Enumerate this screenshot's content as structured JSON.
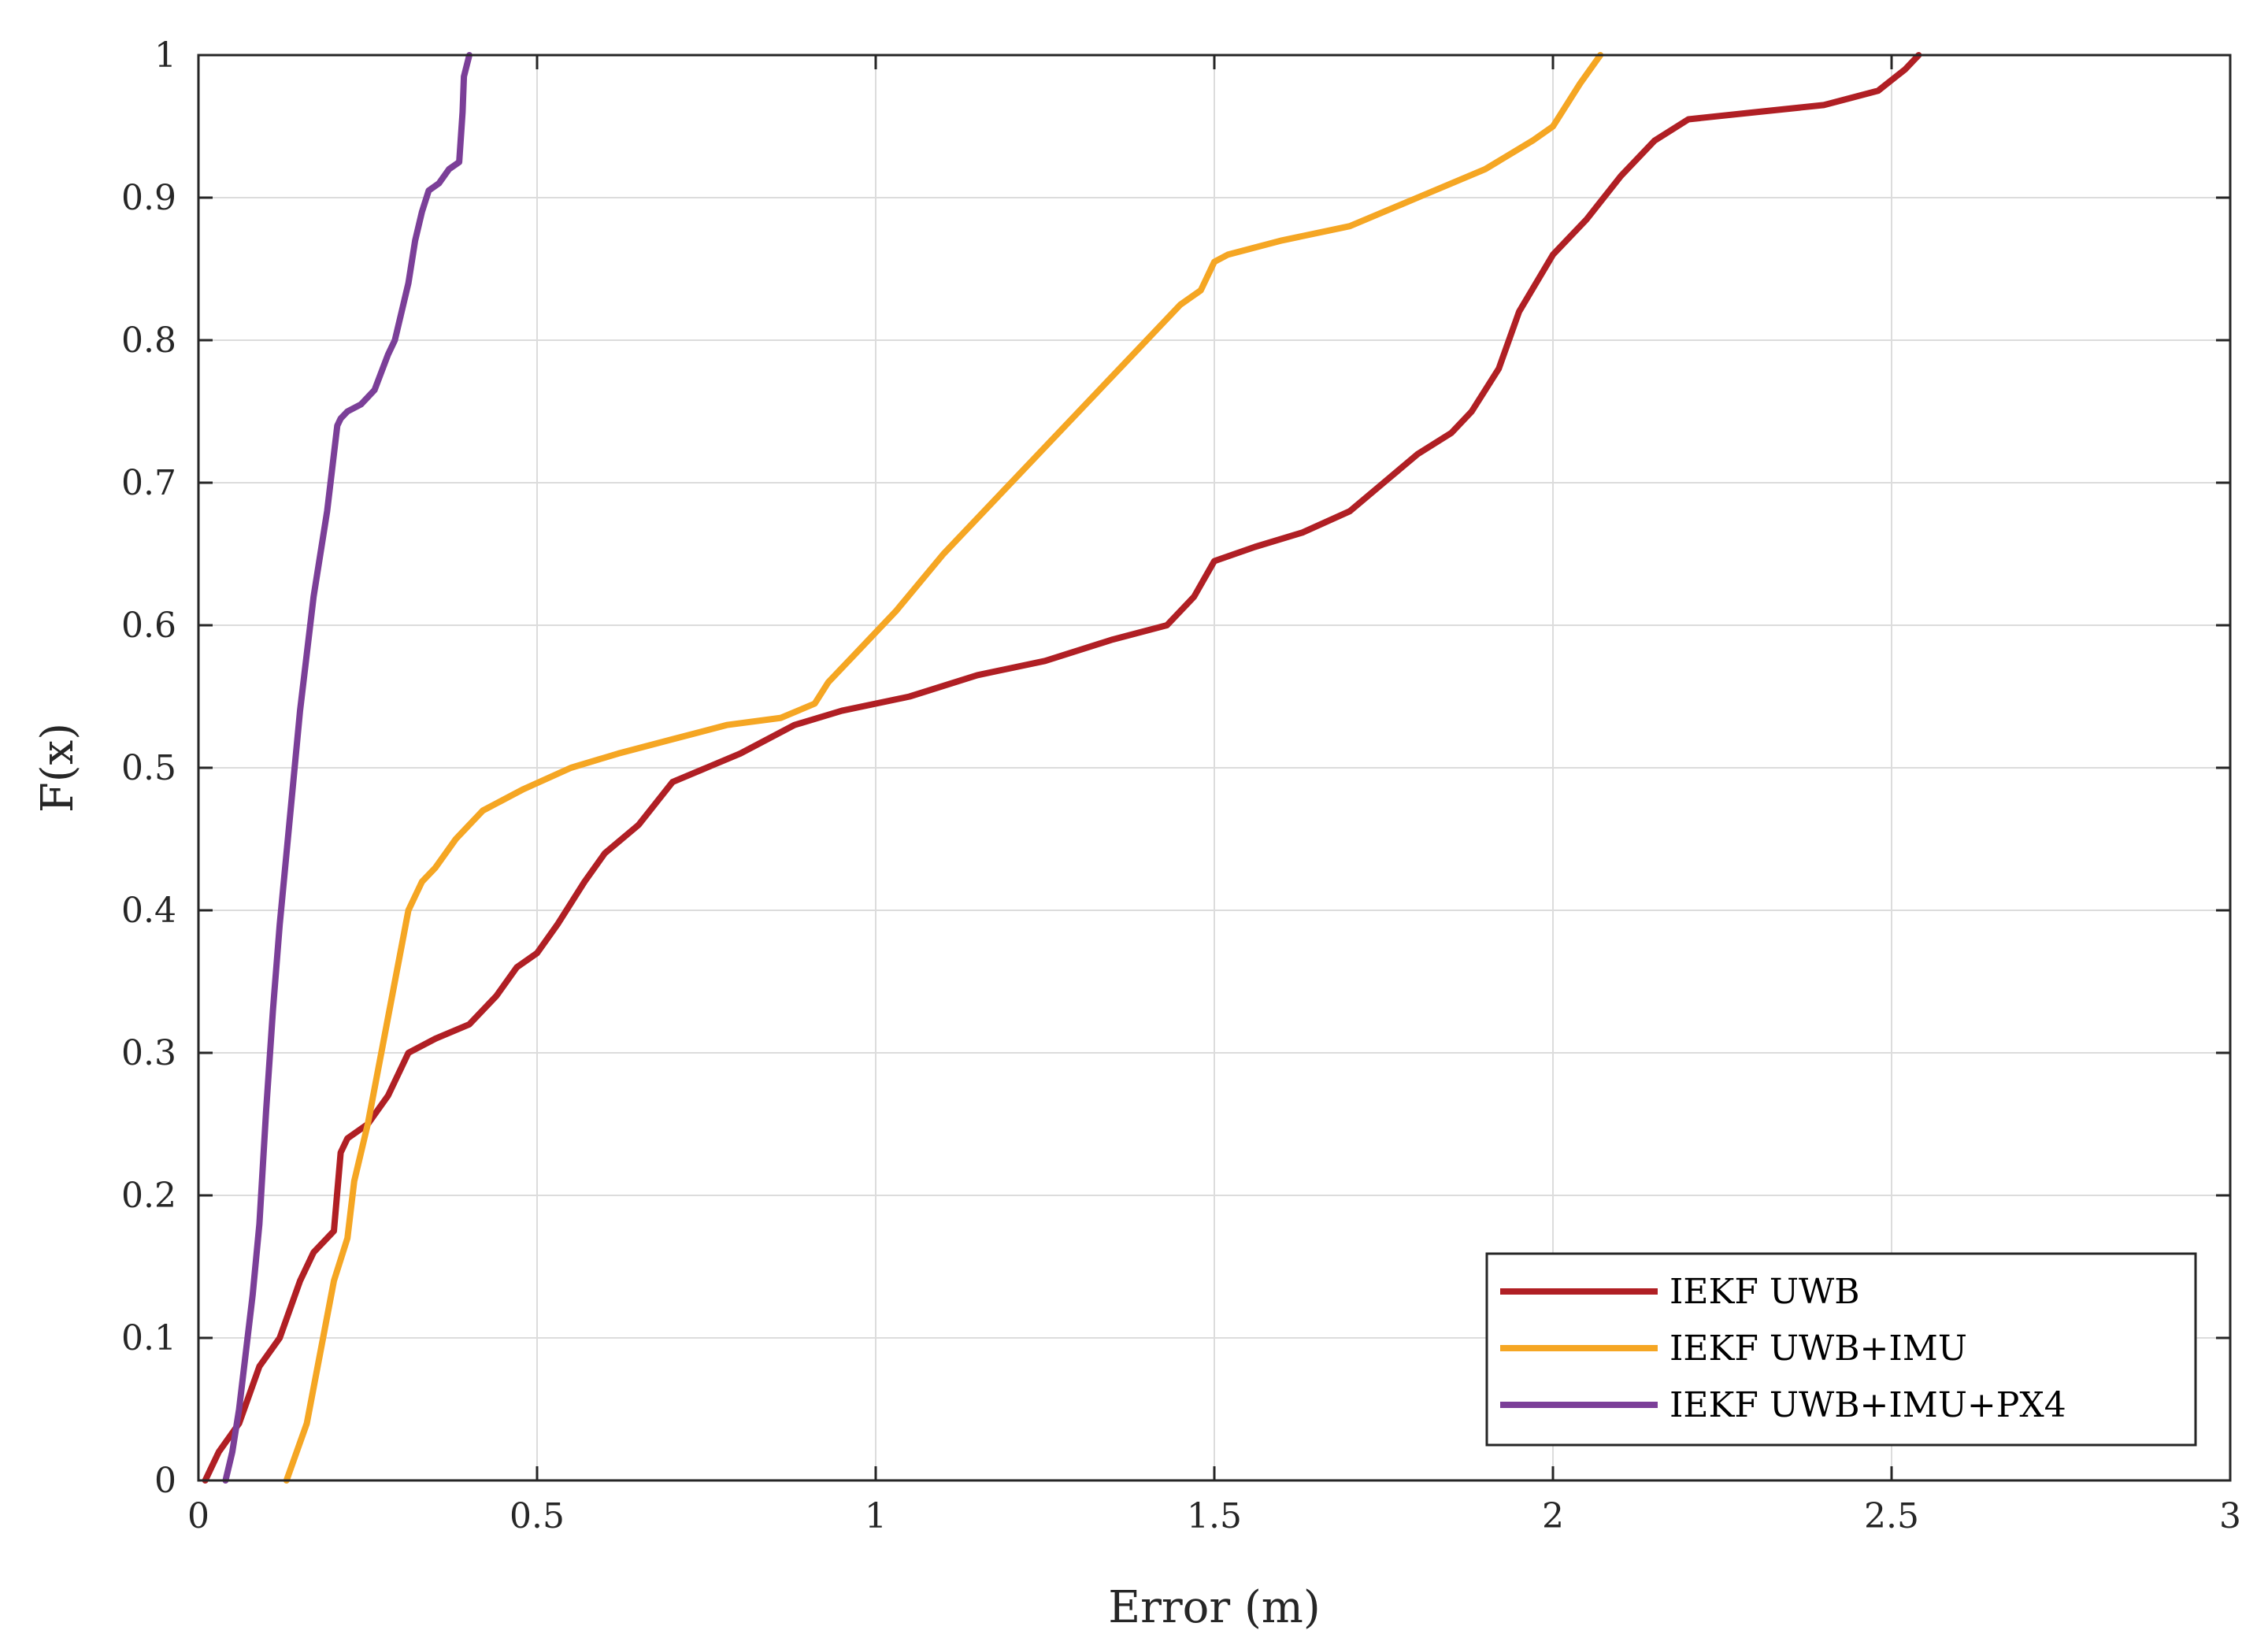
{
  "chart_data": {
    "type": "line",
    "xlabel": "Error (m)",
    "ylabel": "F(x)",
    "xlim": [
      0,
      3
    ],
    "ylim": [
      0,
      1
    ],
    "xticks": [
      "0",
      "0.5",
      "1",
      "1.5",
      "2",
      "2.5",
      "3"
    ],
    "yticks": [
      "0",
      "0.1",
      "0.2",
      "0.3",
      "0.4",
      "0.5",
      "0.6",
      "0.7",
      "0.8",
      "0.9",
      "1"
    ],
    "grid": true,
    "legend_position": "bottom-right",
    "series": [
      {
        "name": "IEKF UWB",
        "color": "#b01f24",
        "x": [
          0.01,
          0.03,
          0.06,
          0.09,
          0.12,
          0.15,
          0.17,
          0.2,
          0.21,
          0.22,
          0.25,
          0.28,
          0.31,
          0.35,
          0.4,
          0.44,
          0.47,
          0.5,
          0.53,
          0.57,
          0.6,
          0.65,
          0.7,
          0.75,
          0.8,
          0.88,
          0.95,
          1.05,
          1.15,
          1.25,
          1.35,
          1.43,
          1.47,
          1.5,
          1.56,
          1.63,
          1.7,
          1.75,
          1.8,
          1.85,
          1.88,
          1.92,
          1.95,
          2.0,
          2.05,
          2.1,
          2.15,
          2.2,
          2.3,
          2.4,
          2.48,
          2.52,
          2.54
        ],
        "values": [
          0.0,
          0.02,
          0.04,
          0.08,
          0.1,
          0.14,
          0.16,
          0.175,
          0.23,
          0.24,
          0.25,
          0.27,
          0.3,
          0.31,
          0.32,
          0.34,
          0.36,
          0.37,
          0.39,
          0.42,
          0.44,
          0.46,
          0.49,
          0.5,
          0.51,
          0.53,
          0.54,
          0.55,
          0.565,
          0.575,
          0.59,
          0.6,
          0.62,
          0.645,
          0.655,
          0.665,
          0.68,
          0.7,
          0.72,
          0.735,
          0.75,
          0.78,
          0.82,
          0.86,
          0.885,
          0.915,
          0.94,
          0.955,
          0.96,
          0.965,
          0.975,
          0.99,
          1.0
        ]
      },
      {
        "name": "IEKF UWB+IMU",
        "color": "#f5a623",
        "x": [
          0.13,
          0.16,
          0.18,
          0.2,
          0.22,
          0.23,
          0.24,
          0.25,
          0.27,
          0.29,
          0.31,
          0.33,
          0.35,
          0.38,
          0.42,
          0.48,
          0.55,
          0.62,
          0.7,
          0.78,
          0.86,
          0.91,
          0.93,
          0.97,
          1.03,
          1.1,
          1.2,
          1.3,
          1.38,
          1.45,
          1.48,
          1.5,
          1.52,
          1.6,
          1.7,
          1.8,
          1.9,
          1.97,
          2.0,
          2.04,
          2.07
        ],
        "values": [
          0.0,
          0.04,
          0.09,
          0.14,
          0.17,
          0.21,
          0.23,
          0.25,
          0.3,
          0.35,
          0.4,
          0.42,
          0.43,
          0.45,
          0.47,
          0.485,
          0.5,
          0.51,
          0.52,
          0.53,
          0.535,
          0.545,
          0.56,
          0.58,
          0.61,
          0.65,
          0.7,
          0.75,
          0.79,
          0.825,
          0.835,
          0.855,
          0.86,
          0.87,
          0.88,
          0.9,
          0.92,
          0.94,
          0.95,
          0.98,
          1.0
        ]
      },
      {
        "name": "IEKF UWB+IMU+PX4",
        "color": "#7b3f98",
        "x": [
          0.04,
          0.05,
          0.06,
          0.07,
          0.08,
          0.09,
          0.1,
          0.11,
          0.12,
          0.13,
          0.14,
          0.15,
          0.16,
          0.17,
          0.18,
          0.19,
          0.2,
          0.205,
          0.21,
          0.22,
          0.24,
          0.26,
          0.28,
          0.29,
          0.31,
          0.32,
          0.33,
          0.34,
          0.355,
          0.37,
          0.385,
          0.39,
          0.392,
          0.4
        ],
        "values": [
          0.0,
          0.02,
          0.05,
          0.09,
          0.13,
          0.18,
          0.26,
          0.33,
          0.39,
          0.44,
          0.49,
          0.54,
          0.58,
          0.62,
          0.65,
          0.68,
          0.72,
          0.74,
          0.745,
          0.75,
          0.755,
          0.765,
          0.79,
          0.8,
          0.84,
          0.87,
          0.89,
          0.905,
          0.91,
          0.92,
          0.925,
          0.96,
          0.985,
          1.0
        ]
      }
    ]
  }
}
